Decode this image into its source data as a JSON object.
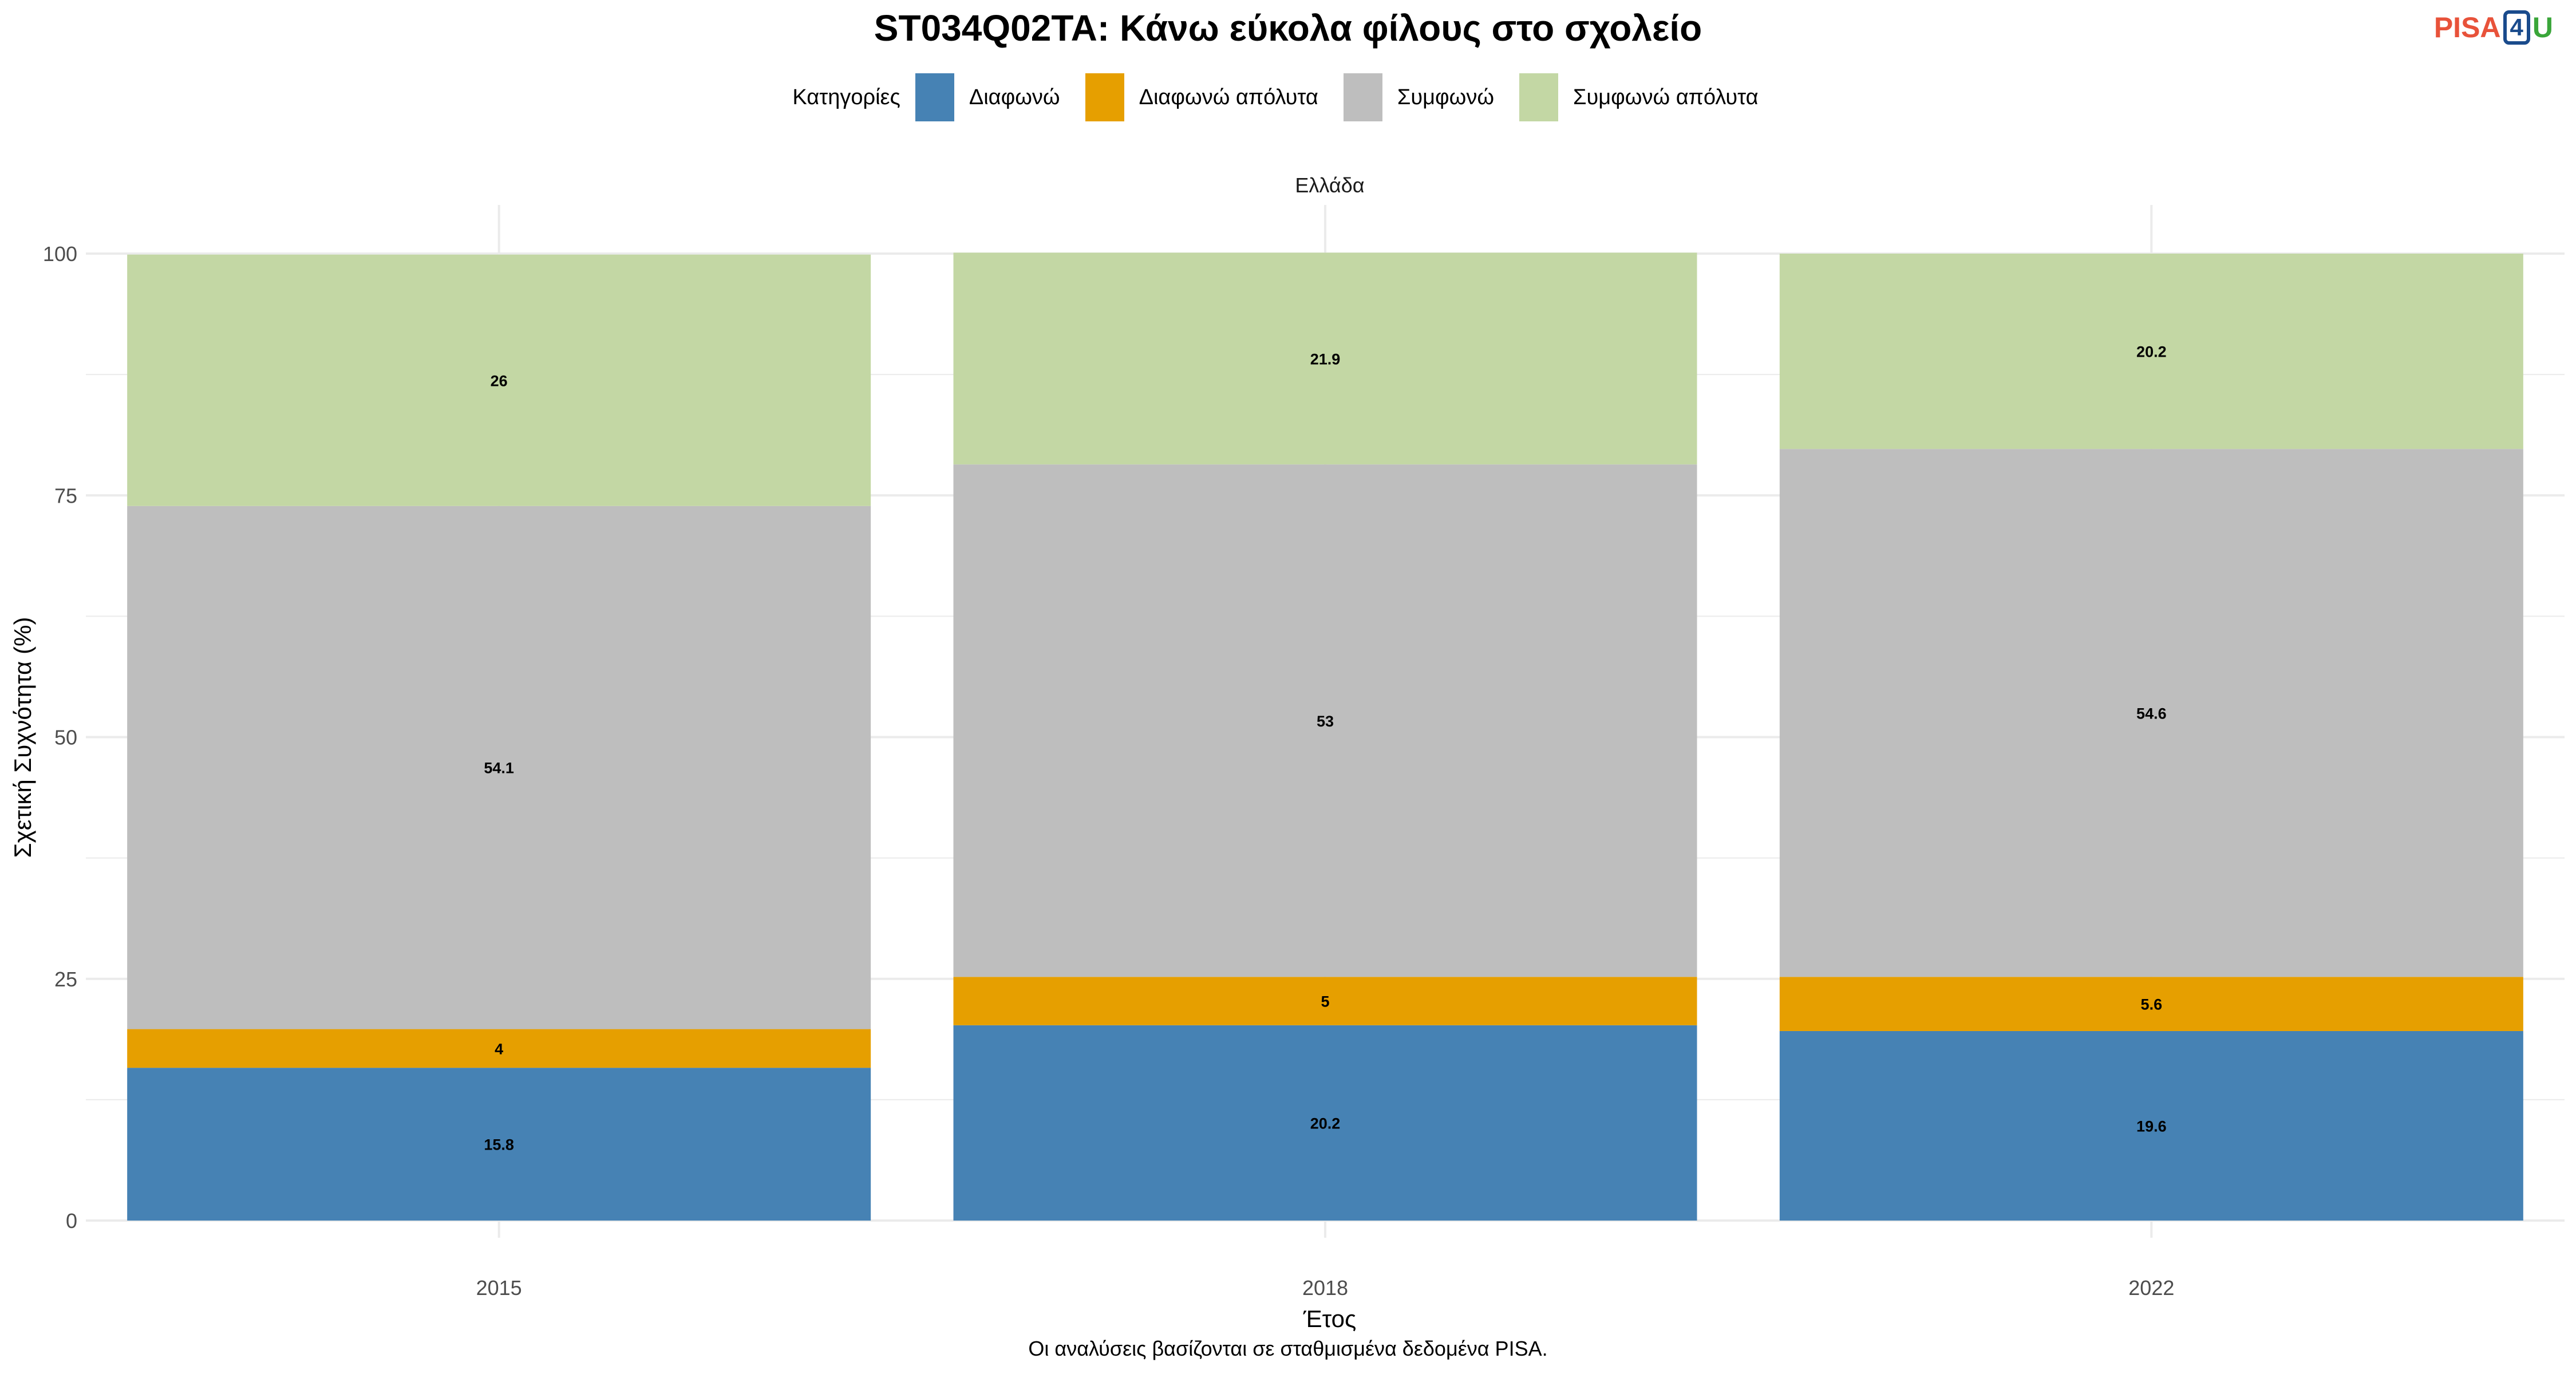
{
  "title": "ST034Q02TA: Κάνω εύκολα φίλους στο σχολείο",
  "logo": {
    "part1": "PISA",
    "part2": "4",
    "part3": "U"
  },
  "caption": "Οι αναλύσεις βασίζονται σε σταθμισμένα δεδομένα PISA.",
  "colors": {
    "Διαφωνώ": "#4682b4",
    "Διαφωνώ απόλυτα": "#e69f00",
    "Συμφωνώ": "#bebebe",
    "Συμφωνώ απόλυτα": "#c3d7a4",
    "grid": "#ebebeb",
    "text": "#4d4d4d"
  },
  "chart_data": {
    "type": "bar",
    "stacked": true,
    "facet": "Ελλάδα",
    "title": "ST034Q02TA: Κάνω εύκολα φίλους στο σχολείο",
    "xlabel": "Έτος",
    "ylabel": "Σχετική Συχνότητα (%)",
    "ylim": [
      0,
      100
    ],
    "yticks": [
      0,
      25,
      50,
      75,
      100
    ],
    "grid": true,
    "legend_title": "Κατηγορίες",
    "legend_position": "top",
    "legend": [
      "Διαφωνώ",
      "Διαφωνώ απόλυτα",
      "Συμφωνώ",
      "Συμφωνώ απόλυτα"
    ],
    "categories": [
      "2015",
      "2018",
      "2022"
    ],
    "series": [
      {
        "name": "Διαφωνώ",
        "values": [
          15.8,
          20.2,
          19.6
        ]
      },
      {
        "name": "Διαφωνώ απόλυτα",
        "values": [
          4,
          5,
          5.6
        ]
      },
      {
        "name": "Συμφωνώ",
        "values": [
          54.1,
          53,
          54.6
        ]
      },
      {
        "name": "Συμφωνώ απόλυτα",
        "values": [
          26,
          21.9,
          20.2
        ]
      }
    ]
  }
}
